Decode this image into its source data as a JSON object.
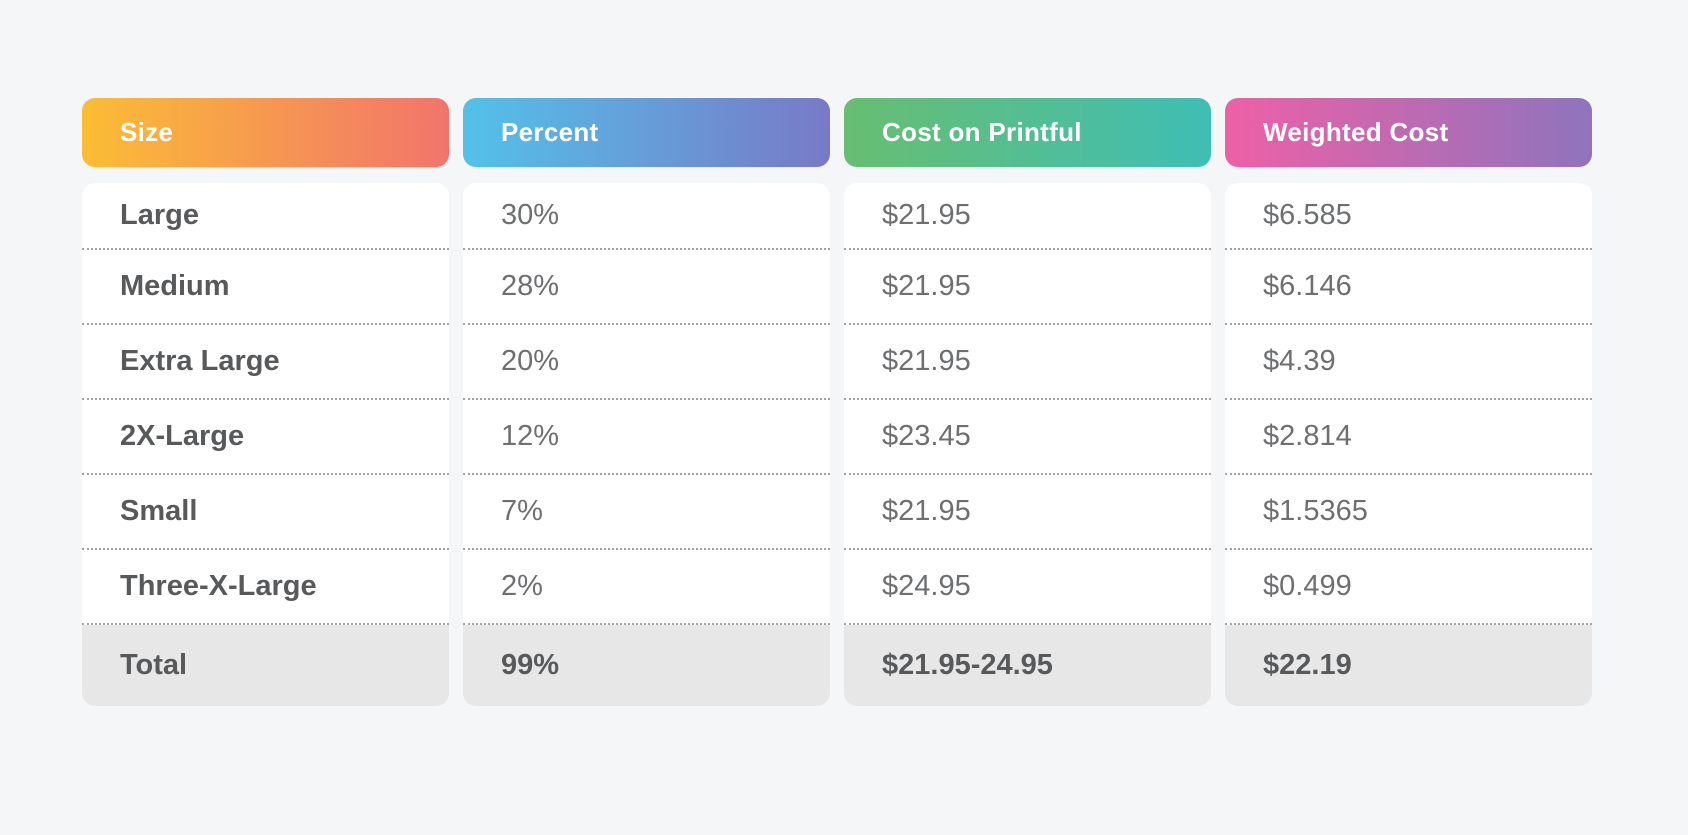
{
  "page": {
    "background": "#F5F6F8",
    "card_background": "#FFFFFF",
    "total_row_background": "#E7E7E7",
    "row_label_color": "#58595B",
    "value_color": "#6E6F71",
    "divider_color": "#A2A2A2",
    "header_text_color": "#FFFFFF"
  },
  "table": {
    "columns": [
      {
        "id": "size",
        "label": "Size",
        "gradient_start": "#FBBD34",
        "gradient_end": "#F1746C"
      },
      {
        "id": "percent",
        "label": "Percent",
        "gradient_start": "#53C1E9",
        "gradient_end": "#7879C7"
      },
      {
        "id": "cost",
        "label": "Cost on Printful",
        "gradient_start": "#68BE71",
        "gradient_end": "#3FBEB4"
      },
      {
        "id": "weighted",
        "label": "Weighted Cost",
        "gradient_start": "#EE60A6",
        "gradient_end": "#8E74BD"
      }
    ],
    "rows": [
      {
        "size": "Large",
        "percent": "30%",
        "cost": "$21.95",
        "weighted": "$6.585"
      },
      {
        "size": "Medium",
        "percent": "28%",
        "cost": "$21.95",
        "weighted": "$6.146"
      },
      {
        "size": "Extra Large",
        "percent": "20%",
        "cost": "$21.95",
        "weighted": "$4.39"
      },
      {
        "size": "2X-Large",
        "percent": "12%",
        "cost": "$23.45",
        "weighted": "$2.814"
      },
      {
        "size": "Small",
        "percent": "7%",
        "cost": "$21.95",
        "weighted": "$1.5365"
      },
      {
        "size": "Three-X-Large",
        "percent": "2%",
        "cost": "$24.95",
        "weighted": "$0.499"
      }
    ],
    "total": {
      "size": "Total",
      "percent": "99%",
      "cost": "$21.95-24.95",
      "weighted": "$22.19"
    }
  },
  "chart_data": {
    "type": "table",
    "title": "",
    "columns": [
      "Size",
      "Percent",
      "Cost on Printful",
      "Weighted Cost"
    ],
    "rows": [
      [
        "Large",
        "30%",
        "$21.95",
        "$6.585"
      ],
      [
        "Medium",
        "28%",
        "$21.95",
        "$6.146"
      ],
      [
        "Extra Large",
        "20%",
        "$21.95",
        "$4.39"
      ],
      [
        "2X-Large",
        "12%",
        "$23.45",
        "$2.814"
      ],
      [
        "Small",
        "7%",
        "$21.95",
        "$1.5365"
      ],
      [
        "Three-X-Large",
        "2%",
        "$24.95",
        "$0.499"
      ],
      [
        "Total",
        "99%",
        "$21.95-24.95",
        "$22.19"
      ]
    ],
    "percent_values": [
      30,
      28,
      20,
      12,
      7,
      2
    ],
    "cost_values": [
      21.95,
      21.95,
      21.95,
      23.45,
      21.95,
      24.95
    ],
    "weighted_values": [
      6.585,
      6.146,
      4.39,
      2.814,
      1.5365,
      0.499
    ],
    "total_percent": 99,
    "total_weighted_cost": 22.19
  }
}
